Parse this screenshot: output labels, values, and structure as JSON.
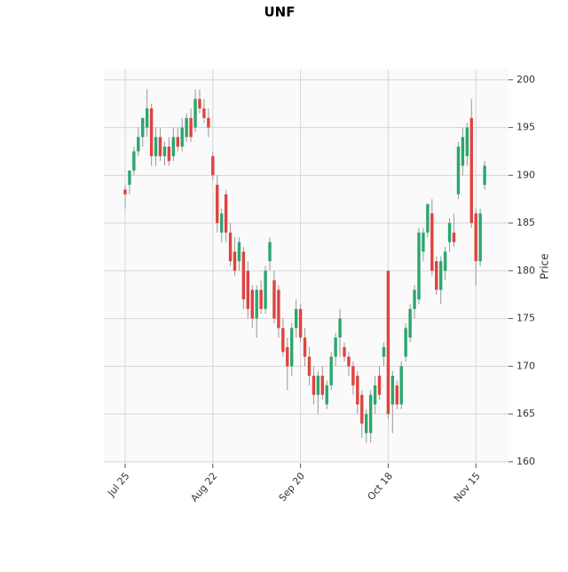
{
  "chart_data": {
    "type": "candlestick",
    "title": "UNF",
    "y_label": "Price",
    "categories": [
      "Jul 25",
      null,
      null,
      null,
      null,
      null,
      null,
      null,
      null,
      null,
      null,
      null,
      null,
      null,
      null,
      null,
      null,
      null,
      null,
      null,
      "Aug 22",
      null,
      null,
      null,
      null,
      null,
      null,
      null,
      null,
      null,
      null,
      null,
      null,
      null,
      null,
      null,
      null,
      null,
      null,
      null,
      "Sep 20",
      null,
      null,
      null,
      null,
      null,
      null,
      null,
      null,
      null,
      null,
      null,
      null,
      null,
      null,
      null,
      null,
      null,
      null,
      null,
      "Oct 18",
      null,
      null,
      null,
      null,
      null,
      null,
      null,
      null,
      null,
      null,
      null,
      null,
      null,
      null,
      null,
      null,
      null,
      null,
      null,
      "Nov 15",
      null,
      null
    ],
    "ohlc": [
      [
        188.5,
        189,
        186.5,
        188
      ],
      [
        189,
        190.5,
        188,
        190.5
      ],
      [
        190.5,
        193,
        190,
        192.5
      ],
      [
        192.5,
        195,
        192,
        194
      ],
      [
        194,
        196,
        193,
        196
      ],
      [
        195,
        199,
        194,
        197
      ],
      [
        197,
        197.5,
        191,
        192
      ],
      [
        192,
        195,
        191,
        194
      ],
      [
        194,
        195,
        191.5,
        192
      ],
      [
        192,
        193.5,
        191,
        193
      ],
      [
        193,
        194,
        191,
        191.5
      ],
      [
        192,
        195,
        191.5,
        194
      ],
      [
        194,
        195,
        192.5,
        193
      ],
      [
        193,
        196,
        192.5,
        195
      ],
      [
        194,
        196.5,
        193.5,
        196
      ],
      [
        196,
        197,
        193.5,
        194
      ],
      [
        195,
        199,
        194.5,
        198
      ],
      [
        198,
        199,
        196.5,
        197
      ],
      [
        197,
        198,
        195.5,
        196
      ],
      [
        196,
        197,
        194,
        195
      ],
      [
        192,
        192.5,
        189.5,
        190
      ],
      [
        189,
        190,
        184,
        185
      ],
      [
        184,
        186.5,
        183,
        186
      ],
      [
        188,
        188.5,
        183,
        184
      ],
      [
        184,
        185,
        180.5,
        181
      ],
      [
        182,
        183.5,
        179.5,
        180
      ],
      [
        181,
        183.5,
        180,
        183
      ],
      [
        182,
        182.5,
        176,
        177
      ],
      [
        180,
        181,
        175,
        176
      ],
      [
        178,
        178.5,
        174,
        175
      ],
      [
        175,
        178.5,
        173,
        178
      ],
      [
        178,
        179,
        175.5,
        176
      ],
      [
        176,
        180.5,
        175.5,
        180
      ],
      [
        181,
        183.5,
        180,
        183
      ],
      [
        179,
        180,
        174.5,
        175
      ],
      [
        178,
        178.5,
        173,
        174
      ],
      [
        174,
        175,
        171,
        171.5
      ],
      [
        172,
        173,
        167.5,
        170
      ],
      [
        170,
        174.5,
        169,
        174
      ],
      [
        174,
        177,
        173,
        176
      ],
      [
        176,
        176.5,
        172.5,
        173
      ],
      [
        173,
        174,
        170,
        171
      ],
      [
        171,
        172,
        168,
        169
      ],
      [
        169,
        170,
        166,
        167
      ],
      [
        167,
        169.5,
        165,
        169
      ],
      [
        169,
        170,
        166.5,
        167
      ],
      [
        166,
        168.5,
        165.5,
        168
      ],
      [
        168,
        171.5,
        167.5,
        171
      ],
      [
        171,
        173.5,
        170,
        173
      ],
      [
        173,
        176,
        171,
        175
      ],
      [
        172,
        172.5,
        170.5,
        171
      ],
      [
        171,
        171.5,
        169,
        170
      ],
      [
        170,
        170.5,
        167,
        168
      ],
      [
        169,
        169.5,
        165,
        166
      ],
      [
        167,
        167.5,
        162.5,
        164
      ],
      [
        163,
        165.5,
        162,
        165
      ],
      [
        163,
        167.5,
        162,
        167
      ],
      [
        166,
        169,
        165,
        168
      ],
      [
        169,
        170,
        166.5,
        167
      ],
      [
        171,
        172.5,
        170,
        172
      ],
      [
        180,
        180,
        164.5,
        165
      ],
      [
        166,
        169.5,
        163,
        169
      ],
      [
        168,
        168.5,
        165.5,
        166
      ],
      [
        166,
        170.5,
        165.5,
        170
      ],
      [
        171,
        174.5,
        170.5,
        174
      ],
      [
        173,
        176.5,
        172.5,
        176
      ],
      [
        176,
        178.5,
        175,
        178
      ],
      [
        177,
        184.5,
        176.5,
        184
      ],
      [
        182,
        184.5,
        181,
        184
      ],
      [
        184,
        187,
        183.5,
        187
      ],
      [
        186,
        187.5,
        179.5,
        180
      ],
      [
        181,
        181.5,
        177.5,
        178
      ],
      [
        178,
        181.5,
        176.5,
        181
      ],
      [
        180,
        182.5,
        179,
        182
      ],
      [
        183,
        185.5,
        182,
        185
      ],
      [
        184,
        186,
        182.5,
        183
      ],
      [
        188,
        193.5,
        187.5,
        193
      ],
      [
        191,
        195,
        190,
        194
      ],
      [
        192,
        195.5,
        191,
        195
      ],
      [
        196,
        198,
        184.5,
        185
      ],
      [
        186,
        186.5,
        178.5,
        181
      ],
      [
        181,
        186.5,
        180.5,
        186
      ],
      [
        189,
        191.5,
        188.5,
        191
      ]
    ],
    "up_color": "#2ca66f",
    "down_color": "#e0433f",
    "ylim": [
      159.8,
      201.1
    ],
    "yticks": [
      160,
      165,
      170,
      175,
      180,
      185,
      190,
      195,
      200
    ],
    "grid": true
  }
}
